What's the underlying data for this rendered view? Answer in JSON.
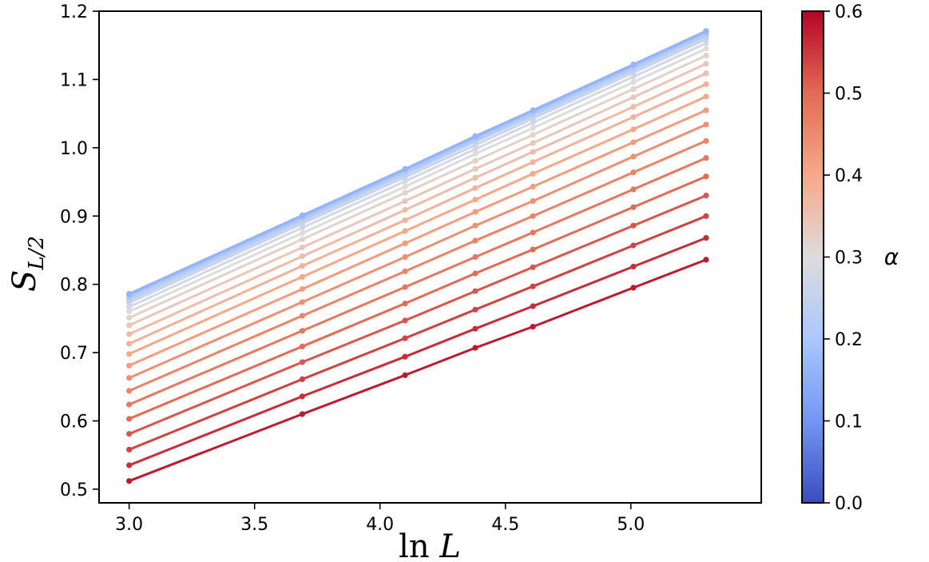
{
  "chart_data": {
    "type": "line",
    "xlabel": "ln L",
    "ylabel": "S_{L/2}",
    "xlim": [
      2.88,
      5.52
    ],
    "ylim": [
      0.48,
      1.2
    ],
    "x_ticks": [
      "3.0",
      "3.5",
      "4.0",
      "4.5",
      "5.0"
    ],
    "y_ticks": [
      "0.5",
      "0.6",
      "0.7",
      "0.8",
      "0.9",
      "1.0",
      "1.1",
      "1.2"
    ],
    "x": [
      3.0,
      3.69,
      4.1,
      4.38,
      4.61,
      5.01,
      5.3
    ],
    "colorbar": {
      "label": "α",
      "range": [
        0.0,
        0.6
      ],
      "ticks": [
        "0.0",
        "0.1",
        "0.2",
        "0.3",
        "0.4",
        "0.5",
        "0.6"
      ],
      "colormap": "coolwarm",
      "colors": [
        "#3b4cc0",
        "#7396f5",
        "#aac7fd",
        "#dddcdc",
        "#f7a889",
        "#e36b54",
        "#b40426"
      ]
    },
    "series": [
      {
        "alpha": 0.58,
        "values": [
          0.512,
          0.61,
          0.667,
          0.707,
          0.738,
          0.795,
          0.836
        ]
      },
      {
        "alpha": 0.56,
        "values": [
          0.535,
          0.636,
          0.694,
          0.735,
          0.768,
          0.826,
          0.868
        ]
      },
      {
        "alpha": 0.54,
        "values": [
          0.558,
          0.661,
          0.721,
          0.763,
          0.797,
          0.857,
          0.9
        ]
      },
      {
        "alpha": 0.52,
        "values": [
          0.581,
          0.686,
          0.747,
          0.79,
          0.825,
          0.886,
          0.93
        ]
      },
      {
        "alpha": 0.5,
        "values": [
          0.603,
          0.709,
          0.772,
          0.816,
          0.851,
          0.913,
          0.958
        ]
      },
      {
        "alpha": 0.48,
        "values": [
          0.624,
          0.732,
          0.796,
          0.84,
          0.876,
          0.939,
          0.985
        ]
      },
      {
        "alpha": 0.46,
        "values": [
          0.644,
          0.754,
          0.819,
          0.864,
          0.9,
          0.964,
          1.01
        ]
      },
      {
        "alpha": 0.44,
        "values": [
          0.663,
          0.774,
          0.84,
          0.886,
          0.922,
          0.987,
          1.034
        ]
      },
      {
        "alpha": 0.42,
        "values": [
          0.681,
          0.793,
          0.86,
          0.906,
          0.943,
          1.008,
          1.055
        ]
      },
      {
        "alpha": 0.4,
        "values": [
          0.698,
          0.811,
          0.878,
          0.924,
          0.962,
          1.027,
          1.075
        ]
      },
      {
        "alpha": 0.38,
        "values": [
          0.713,
          0.827,
          0.894,
          0.941,
          0.979,
          1.045,
          1.093
        ]
      },
      {
        "alpha": 0.36,
        "values": [
          0.727,
          0.841,
          0.909,
          0.956,
          0.994,
          1.06,
          1.109
        ]
      },
      {
        "alpha": 0.34,
        "values": [
          0.74,
          0.854,
          0.922,
          0.969,
          1.007,
          1.074,
          1.123
        ]
      },
      {
        "alpha": 0.32,
        "values": [
          0.751,
          0.866,
          0.934,
          0.981,
          1.019,
          1.086,
          1.135
        ]
      },
      {
        "alpha": 0.3,
        "values": [
          0.76,
          0.875,
          0.943,
          0.991,
          1.029,
          1.096,
          1.145
        ]
      },
      {
        "alpha": 0.28,
        "values": [
          0.767,
          0.883,
          0.951,
          0.998,
          1.037,
          1.104,
          1.153
        ]
      },
      {
        "alpha": 0.26,
        "values": [
          0.773,
          0.889,
          0.957,
          1.004,
          1.043,
          1.11,
          1.159
        ]
      },
      {
        "alpha": 0.24,
        "values": [
          0.777,
          0.893,
          0.961,
          1.009,
          1.047,
          1.114,
          1.163
        ]
      },
      {
        "alpha": 0.22,
        "values": [
          0.781,
          0.896,
          0.964,
          1.012,
          1.05,
          1.117,
          1.166
        ]
      },
      {
        "alpha": 0.2,
        "values": [
          0.783,
          0.898,
          0.966,
          1.014,
          1.052,
          1.119,
          1.168
        ]
      },
      {
        "alpha": 0.18,
        "values": [
          0.785,
          0.9,
          0.968,
          1.016,
          1.054,
          1.121,
          1.17
        ]
      },
      {
        "alpha": 0.16,
        "values": [
          0.786,
          0.901,
          0.969,
          1.017,
          1.055,
          1.122,
          1.171
        ]
      }
    ]
  }
}
